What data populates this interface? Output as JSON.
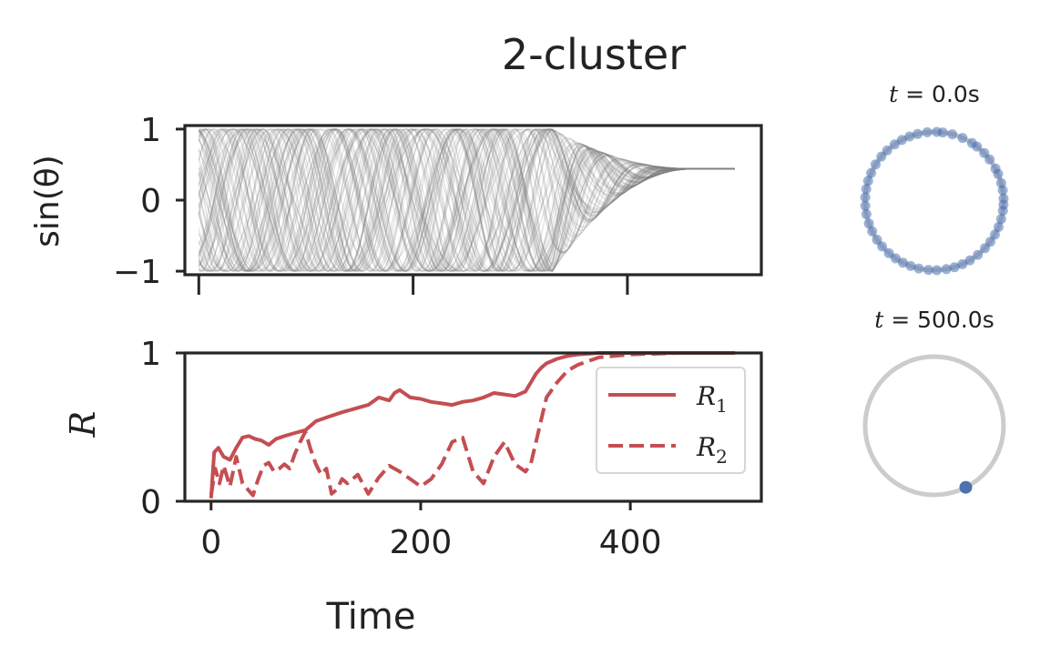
{
  "title": "2-cluster",
  "chart_data": [
    {
      "type": "line",
      "panel": "phases",
      "ylabel": "sin(θ)",
      "xlim": [
        -13,
        525
      ],
      "ylim": [
        -1.05,
        1.05
      ],
      "x_ticks": [
        0,
        200,
        400
      ],
      "y_ticks": [
        -1,
        0,
        1
      ],
      "y_tick_labels": [
        "−1",
        "0",
        "1"
      ],
      "x_tick_labels_shown": false,
      "series_color": "#808080",
      "x_range": [
        0,
        500
      ],
      "final_value": 0.44,
      "oscillation_ends_near": 330
    },
    {
      "type": "line",
      "panel": "order-parameter",
      "xlabel": "Time",
      "ylabel": "R",
      "xlim": [
        -25,
        525
      ],
      "ylim": [
        0,
        1
      ],
      "x_ticks": [
        0,
        200,
        400
      ],
      "x_tick_labels": [
        "0",
        "200",
        "400"
      ],
      "y_ticks": [
        0,
        1
      ],
      "y_tick_labels": [
        "0",
        "1"
      ],
      "legend_position": "right",
      "series": [
        {
          "name": "R₁",
          "legend_base": "R",
          "legend_sub": "1",
          "style": "solid",
          "color": "#c44e52",
          "x": [
            0,
            3,
            7,
            12,
            18,
            24,
            30,
            36,
            42,
            48,
            55,
            62,
            70,
            80,
            90,
            100,
            112,
            125,
            140,
            150,
            160,
            170,
            175,
            180,
            190,
            200,
            210,
            220,
            230,
            240,
            250,
            260,
            270,
            280,
            290,
            300,
            305,
            310,
            315,
            320,
            330,
            340,
            350,
            370,
            400,
            450,
            500
          ],
          "y": [
            0.02,
            0.33,
            0.36,
            0.3,
            0.28,
            0.36,
            0.43,
            0.44,
            0.42,
            0.41,
            0.38,
            0.42,
            0.44,
            0.46,
            0.48,
            0.54,
            0.57,
            0.6,
            0.63,
            0.65,
            0.7,
            0.68,
            0.73,
            0.75,
            0.7,
            0.69,
            0.67,
            0.66,
            0.65,
            0.67,
            0.68,
            0.7,
            0.73,
            0.72,
            0.71,
            0.74,
            0.8,
            0.86,
            0.9,
            0.93,
            0.96,
            0.98,
            0.99,
            1.0,
            1.0,
            1.0,
            1.0
          ]
        },
        {
          "name": "R₂",
          "legend_base": "R",
          "legend_sub": "2",
          "style": "dashed",
          "color": "#c44e52",
          "x": [
            0,
            4,
            8,
            12,
            18,
            24,
            30,
            35,
            40,
            45,
            50,
            55,
            60,
            65,
            70,
            75,
            80,
            85,
            90,
            95,
            100,
            105,
            110,
            115,
            120,
            125,
            130,
            140,
            150,
            160,
            170,
            180,
            190,
            200,
            210,
            220,
            230,
            240,
            250,
            260,
            270,
            280,
            290,
            300,
            305,
            310,
            315,
            320,
            330,
            340,
            350,
            370,
            400,
            450,
            500
          ],
          "y": [
            0.04,
            0.22,
            0.12,
            0.24,
            0.1,
            0.3,
            0.12,
            0.08,
            0.04,
            0.15,
            0.24,
            0.26,
            0.2,
            0.22,
            0.25,
            0.22,
            0.32,
            0.4,
            0.47,
            0.35,
            0.25,
            0.18,
            0.22,
            0.05,
            0.08,
            0.15,
            0.12,
            0.18,
            0.05,
            0.16,
            0.24,
            0.2,
            0.15,
            0.1,
            0.15,
            0.25,
            0.4,
            0.43,
            0.2,
            0.12,
            0.3,
            0.4,
            0.25,
            0.2,
            0.25,
            0.4,
            0.55,
            0.7,
            0.8,
            0.88,
            0.92,
            0.97,
            0.99,
            1.0,
            1.0
          ]
        }
      ]
    },
    {
      "type": "scatter",
      "panel": "unit-circle-start",
      "title_var": "t",
      "title_value": "= 0.0s",
      "title": "t = 0.0s",
      "point_color": "#4c72b0",
      "circle_color": "#cccccc",
      "angles_deg": [
        2,
        9,
        15,
        23,
        28,
        37,
        44,
        52,
        57,
        66,
        75,
        83,
        88,
        96,
        104,
        111,
        118,
        125,
        133,
        140,
        148,
        156,
        163,
        170,
        177,
        184,
        191,
        199,
        206,
        214,
        221,
        229,
        236,
        243,
        250,
        257,
        265,
        272,
        280,
        287,
        294,
        301,
        309,
        317,
        324,
        331,
        338,
        345,
        352,
        357
      ]
    },
    {
      "type": "scatter",
      "panel": "unit-circle-end",
      "title_var": "t",
      "title_value": "= 500.0s",
      "title": "t = 500.0s",
      "point_color": "#4c72b0",
      "circle_color": "#cccccc",
      "angles_deg": [
        -63
      ]
    }
  ]
}
